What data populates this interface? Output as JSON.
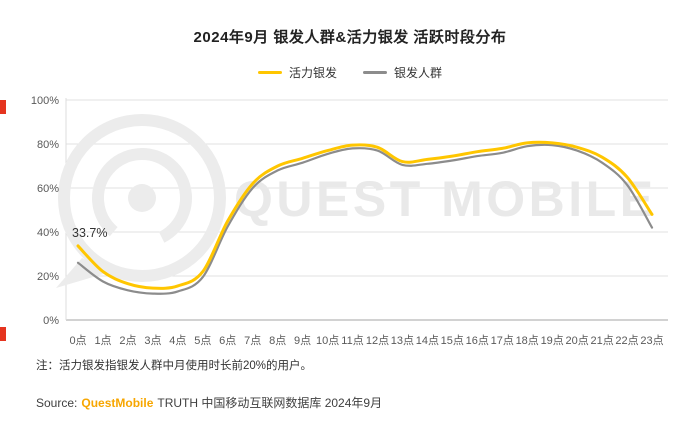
{
  "title": "2024年9月 银发人群&活力银发 活跃时段分布",
  "legend": [
    {
      "label": "活力银发",
      "color": "#FFC600"
    },
    {
      "label": "银发人群",
      "color": "#8C8C8C"
    }
  ],
  "annotation": "33.7%",
  "note": "注：活力银发指银发人群中月使用时长前20%的用户。",
  "source": {
    "prefix": "Source:",
    "brand": "QuestMobile",
    "suffix": "TRUTH 中国移动互联网数据库 2024年9月"
  },
  "watermark": "QUEST MOBILE",
  "accents": {
    "red": "#E5341F",
    "brand_yellow": "#FFC600",
    "brand_orange": "#F7A600",
    "watermark_gray": "#ECECEC"
  },
  "chart_data": {
    "type": "line",
    "title": "2024年9月 银发人群&活力银发 活跃时段分布",
    "categories": [
      "0点",
      "1点",
      "2点",
      "3点",
      "4点",
      "5点",
      "6点",
      "7点",
      "8点",
      "9点",
      "10点",
      "11点",
      "12点",
      "13点",
      "14点",
      "15点",
      "16点",
      "17点",
      "18点",
      "19点",
      "20点",
      "21点",
      "22点",
      "23点"
    ],
    "series": [
      {
        "name": "活力银发",
        "color": "#FFC600",
        "values": [
          33.7,
          22,
          16.5,
          14.5,
          15.5,
          22,
          45,
          62,
          70,
          73.5,
          77,
          79.5,
          78.5,
          72,
          73,
          74.5,
          76.5,
          78,
          80.5,
          80.5,
          78.5,
          74,
          65,
          48
        ]
      },
      {
        "name": "银发人群",
        "color": "#8C8C8C",
        "values": [
          26,
          17.5,
          13.5,
          12,
          13,
          19.5,
          42.5,
          60,
          68,
          71.5,
          75.5,
          78,
          77,
          70.5,
          71,
          72.5,
          74.5,
          76,
          79,
          79.5,
          77,
          71.5,
          61.5,
          42
        ]
      }
    ],
    "ylim": [
      0,
      100
    ],
    "yticks": [
      0,
      20,
      40,
      60,
      80,
      100
    ],
    "xlabel": "",
    "ylabel": "",
    "grid": true,
    "legend_position": "top",
    "first_point_label": "33.7%"
  }
}
